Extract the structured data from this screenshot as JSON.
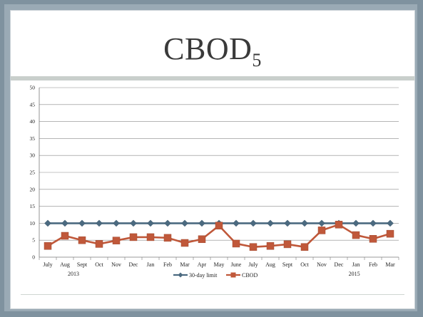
{
  "slide": {
    "title_main": "CBOD",
    "title_sub": "5"
  },
  "chart_data": {
    "type": "line",
    "categories": [
      "July",
      "Aug",
      "Sept",
      "Oct",
      "Nov",
      "Dec",
      "Jan",
      "Feb",
      "Mar",
      "Apr",
      "May",
      "June",
      "July",
      "Aug",
      "Sept",
      "Oct",
      "Nov",
      "Dec",
      "Jan",
      "Feb",
      "Mar"
    ],
    "year_labels": [
      {
        "label": "2013",
        "category_index": 1.5
      },
      {
        "label": "2015",
        "category_index": 17.9
      }
    ],
    "ylim": [
      0,
      50
    ],
    "yticks": [
      0,
      5,
      10,
      15,
      20,
      25,
      30,
      35,
      40,
      45,
      50
    ],
    "grid": true,
    "legend_position": "bottom",
    "series": [
      {
        "name": "30-day limit",
        "color": "#4b6a80",
        "marker": "diamond",
        "values": [
          10,
          10,
          10,
          10,
          10,
          10,
          10,
          10,
          10,
          10,
          10,
          10,
          10,
          10,
          10,
          10,
          10,
          10,
          10,
          10,
          10
        ]
      },
      {
        "name": "CBOD",
        "color": "#c0583a",
        "marker": "square",
        "values": [
          3.3,
          6.3,
          5.0,
          3.9,
          4.9,
          5.9,
          5.9,
          5.7,
          4.2,
          5.3,
          9.3,
          4.0,
          3.0,
          3.3,
          3.8,
          3.0,
          7.9,
          9.6,
          6.5,
          5.4,
          6.9
        ]
      }
    ]
  }
}
